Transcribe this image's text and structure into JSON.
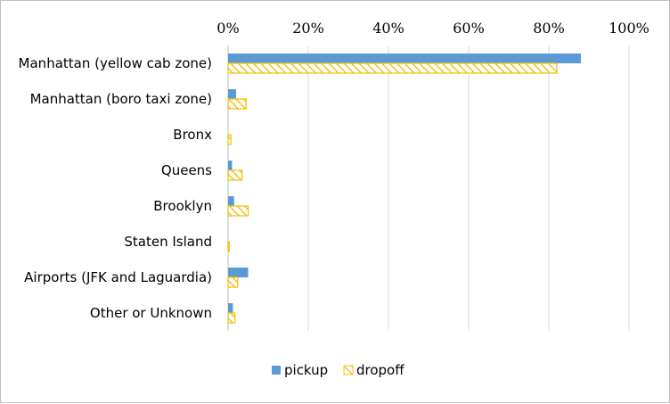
{
  "chart_data": {
    "type": "bar",
    "orientation": "horizontal",
    "categories": [
      "Manhattan (yellow cab zone)",
      "Manhattan (boro taxi zone)",
      "Bronx",
      "Queens",
      "Brooklyn",
      "Staten Island",
      "Airports (JFK and Laguardia)",
      "Other or Unknown"
    ],
    "series": [
      {
        "name": "pickup",
        "color": "#5b9bd5",
        "pattern": "solid",
        "values": [
          88,
          2,
          0,
          1,
          1.5,
          0,
          5,
          1.2
        ]
      },
      {
        "name": "dropoff",
        "color": "#f2c218",
        "pattern": "diagonal-hatch",
        "values": [
          82,
          4.5,
          0.7,
          3.5,
          5,
          0.3,
          2.4,
          1.7
        ]
      }
    ],
    "xlim": [
      0,
      100
    ],
    "x_ticks": [
      "0%",
      "20%",
      "40%",
      "60%",
      "80%",
      "100%"
    ],
    "x_axis_position": "top",
    "grid": true,
    "legend_position": "bottom",
    "title": "",
    "xlabel": "",
    "ylabel": ""
  }
}
